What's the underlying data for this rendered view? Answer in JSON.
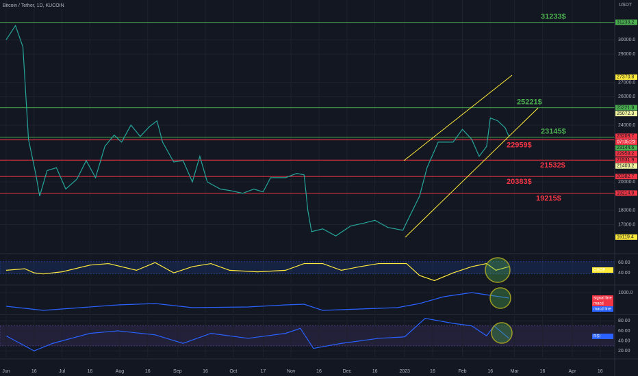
{
  "title": "Bitcoin / Tether, 1D, KUCOIN",
  "currency": "USDT",
  "countdown": "07:05:23",
  "chart_data": [
    {
      "type": "line",
      "xlim": [
        -3.3,
        326.8
      ],
      "ylim": [
        15100,
        32800
      ],
      "yticks": [
        {
          "value": 17000,
          "label": "17000.0"
        },
        {
          "value": 18000,
          "label": "18000.0"
        },
        {
          "value": 20000,
          "label": "20000.0"
        },
        {
          "value": 24000,
          "label": "24000.0"
        },
        {
          "value": 26000,
          "label": "26000.0"
        },
        {
          "value": 27000,
          "label": "27000.0"
        },
        {
          "value": 29000,
          "label": "29000.0"
        },
        {
          "value": 30000,
          "label": "30000.0"
        }
      ],
      "series": [
        {
          "color": "#26a69a",
          "x": [
            0,
            5,
            9,
            12,
            16,
            18,
            22,
            27,
            32,
            38,
            43,
            48,
            53,
            58,
            62,
            67,
            72,
            77,
            81,
            84,
            90,
            95,
            100,
            104,
            108,
            115,
            120,
            127,
            133,
            138,
            142,
            150,
            156,
            160,
            162,
            164,
            170,
            177,
            185,
            192,
            198,
            205,
            213,
            222,
            226,
            232,
            240,
            245,
            250,
            254,
            258,
            260,
            264,
            268,
            270
          ],
          "values": [
            30000,
            31000,
            29500,
            23000,
            20500,
            19000,
            20800,
            21000,
            19500,
            20200,
            21500,
            20300,
            22500,
            23300,
            22800,
            24000,
            23200,
            23900,
            24300,
            22800,
            21400,
            21500,
            20000,
            21800,
            20000,
            19500,
            19400,
            19200,
            19500,
            19300,
            20300,
            20300,
            20600,
            20500,
            18000,
            16500,
            16700,
            16200,
            16900,
            17100,
            17300,
            16800,
            16600,
            19000,
            21000,
            22800,
            22800,
            23700,
            23000,
            21800,
            22500,
            24500,
            24300,
            23800,
            23200
          ]
        }
      ],
      "levels": [
        {
          "value": 31233,
          "label": "31233$",
          "color": "#4caf50"
        },
        {
          "value": 25221,
          "label": "25221$",
          "color": "#4caf50"
        },
        {
          "value": 23145,
          "label": "23145$",
          "color": "#4caf50"
        },
        {
          "value": 22959,
          "label": "22959$",
          "color": "#f23645"
        },
        {
          "value": 21532,
          "label": "21532$",
          "color": "#f23645"
        },
        {
          "value": 20383,
          "label": "20383$",
          "color": "#f23645"
        },
        {
          "value": 19215,
          "label": "19215$",
          "color": "#f23645"
        }
      ],
      "price_tags": [
        {
          "value": 31233,
          "label": "31233.2",
          "color": "#4caf50"
        },
        {
          "value": 27370.8,
          "label": "27370.8",
          "color": "#ffeb3b"
        },
        {
          "value": 25221.9,
          "label": "25221.9",
          "color": "#4caf50"
        },
        {
          "value": 25072.3,
          "label": "25072.3",
          "color": "#f0f3a0"
        },
        {
          "value": 23209.7,
          "label": "23209.7",
          "color": "#f23645"
        },
        {
          "value": 23144.6,
          "label": "23144.6",
          "color": "#4caf50"
        },
        {
          "value": 22959.2,
          "label": "22959.2",
          "color": "#f23645"
        },
        {
          "value": 21531.9,
          "label": "21531.9",
          "color": "#f23645"
        },
        {
          "value": 21403.2,
          "label": "21403.2",
          "color": "#f0f3a0"
        },
        {
          "value": 20382.7,
          "label": "20382.7",
          "color": "#f23645"
        },
        {
          "value": 19214.9,
          "label": "19214.9",
          "color": "#f23645"
        },
        {
          "value": 16119.4,
          "label": "16119.4",
          "color": "#ffeb3b"
        }
      ]
    },
    {
      "type": "line",
      "xlim": [
        -3.3,
        326.8
      ],
      "ylim": [
        19,
        72
      ],
      "yticks": [
        {
          "value": 40,
          "label": "40.00"
        },
        {
          "value": 60,
          "label": "60.00"
        }
      ],
      "band": [
        38.2,
        61.8
      ],
      "band_color": "#2962ff",
      "legend": [
        {
          "label": "CHOP",
          "color": "#ffeb3b"
        }
      ],
      "series": [
        {
          "color": "#ffeb3b",
          "x": [
            0,
            10,
            15,
            20,
            30,
            45,
            55,
            70,
            80,
            90,
            100,
            110,
            120,
            135,
            150,
            160,
            170,
            180,
            190,
            200,
            215,
            222,
            230,
            240,
            250,
            258,
            263,
            270
          ],
          "values": [
            45,
            48,
            40,
            38,
            42,
            55,
            58,
            45,
            60,
            40,
            52,
            58,
            45,
            42,
            45,
            58,
            58,
            45,
            52,
            58,
            58,
            35,
            25,
            40,
            52,
            58,
            45,
            52
          ]
        }
      ]
    },
    {
      "type": "line",
      "xlim": [
        -3.3,
        326.8
      ],
      "ylim": [
        -500,
        1400
      ],
      "yticks": [
        {
          "value": 1000,
          "label": "1000.0"
        }
      ],
      "legend": [
        {
          "label": "signal line",
          "color": "#f23645"
        },
        {
          "label": "macd",
          "color": "#f23645"
        },
        {
          "label": "macd line",
          "color": "#2962ff"
        }
      ],
      "series": [
        {
          "color": "#2962ff",
          "x": [
            0,
            20,
            40,
            60,
            80,
            100,
            130,
            150,
            160,
            170,
            190,
            210,
            222,
            235,
            250,
            260,
            270
          ],
          "values": [
            0,
            -300,
            -100,
            100,
            200,
            -100,
            -50,
            100,
            150,
            -300,
            -200,
            -100,
            200,
            700,
            1000,
            800,
            600
          ]
        }
      ]
    },
    {
      "type": "line",
      "xlim": [
        -3.3,
        326.8
      ],
      "ylim": [
        8,
        90
      ],
      "yticks": [
        {
          "value": 20,
          "label": "20.00"
        },
        {
          "value": 40,
          "label": "40.00"
        },
        {
          "value": 60,
          "label": "60.00"
        },
        {
          "value": 80,
          "label": "80.00"
        }
      ],
      "band": [
        30,
        70
      ],
      "band_color": "#7e57c2",
      "legend": [
        {
          "label": "RSI",
          "color": "#2962ff"
        }
      ],
      "series": [
        {
          "color": "#2962ff",
          "x": [
            0,
            10,
            15,
            25,
            45,
            60,
            80,
            95,
            110,
            130,
            150,
            158,
            165,
            180,
            200,
            214,
            225,
            240,
            250,
            258,
            262,
            270
          ],
          "values": [
            50,
            30,
            20,
            35,
            55,
            60,
            52,
            35,
            55,
            45,
            55,
            65,
            25,
            35,
            45,
            48,
            85,
            75,
            70,
            50,
            70,
            45
          ]
        }
      ],
      "xticks": [
        {
          "value": 0,
          "label": "Jun"
        },
        {
          "value": 15,
          "label": "16"
        },
        {
          "value": 30,
          "label": "Jul"
        },
        {
          "value": 45,
          "label": "16"
        },
        {
          "value": 61,
          "label": "Aug"
        },
        {
          "value": 76,
          "label": "16"
        },
        {
          "value": 92,
          "label": "Sep"
        },
        {
          "value": 107,
          "label": "16"
        },
        {
          "value": 122,
          "label": "Oct"
        },
        {
          "value": 138,
          "label": "17"
        },
        {
          "value": 153,
          "label": "Nov"
        },
        {
          "value": 168,
          "label": "16"
        },
        {
          "value": 183,
          "label": "Dec"
        },
        {
          "value": 198,
          "label": "16"
        },
        {
          "value": 214,
          "label": "2023"
        },
        {
          "value": 229,
          "label": "16"
        },
        {
          "value": 245,
          "label": "Feb"
        },
        {
          "value": 260,
          "label": "16"
        },
        {
          "value": 273,
          "label": "Mar"
        },
        {
          "value": 288,
          "label": "16"
        },
        {
          "value": 304,
          "label": "Apr"
        },
        {
          "value": 319,
          "label": "16"
        }
      ]
    }
  ]
}
